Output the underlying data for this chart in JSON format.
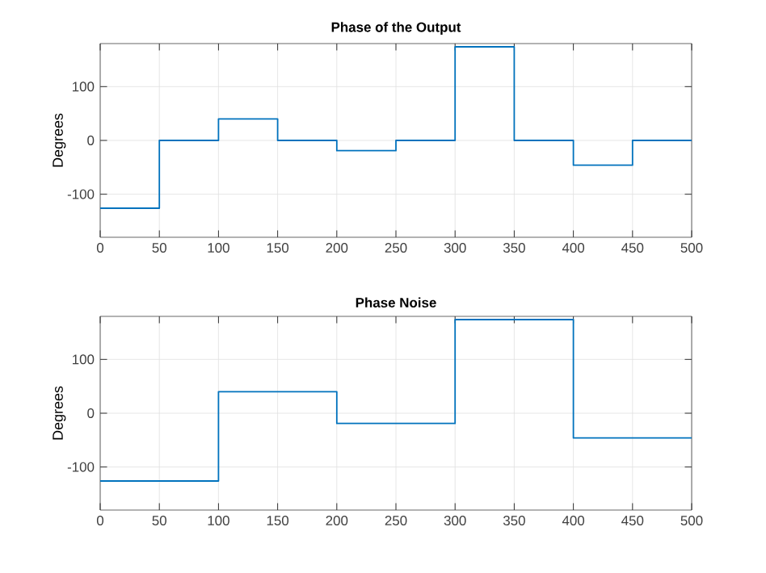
{
  "chart_data": [
    {
      "type": "step",
      "title": "Phase of the Output",
      "ylabel": "Degrees",
      "x": [
        0,
        50,
        100,
        150,
        200,
        250,
        300,
        350,
        400,
        450,
        500
      ],
      "series": [
        {
          "color": "#0072bd",
          "values": [
            -126,
            0,
            40,
            0,
            -19,
            0,
            174,
            0,
            -46,
            0,
            0
          ]
        }
      ],
      "xlim": [
        0,
        500
      ],
      "xticks": [
        0,
        50,
        100,
        150,
        200,
        250,
        300,
        350,
        400,
        450,
        500
      ],
      "ylim": [
        -180,
        180
      ],
      "yticks": [
        -100,
        0,
        100
      ],
      "grid": true
    },
    {
      "type": "step",
      "title": "Phase Noise",
      "ylabel": "Degrees",
      "x": [
        0,
        100,
        200,
        300,
        400,
        500
      ],
      "series": [
        {
          "color": "#0072bd",
          "values": [
            -126,
            40,
            -19,
            174,
            -46,
            -46
          ]
        }
      ],
      "xlim": [
        0,
        500
      ],
      "xticks": [
        0,
        50,
        100,
        150,
        200,
        250,
        300,
        350,
        400,
        450,
        500
      ],
      "ylim": [
        -180,
        180
      ],
      "yticks": [
        -100,
        0,
        100
      ],
      "grid": true
    }
  ]
}
